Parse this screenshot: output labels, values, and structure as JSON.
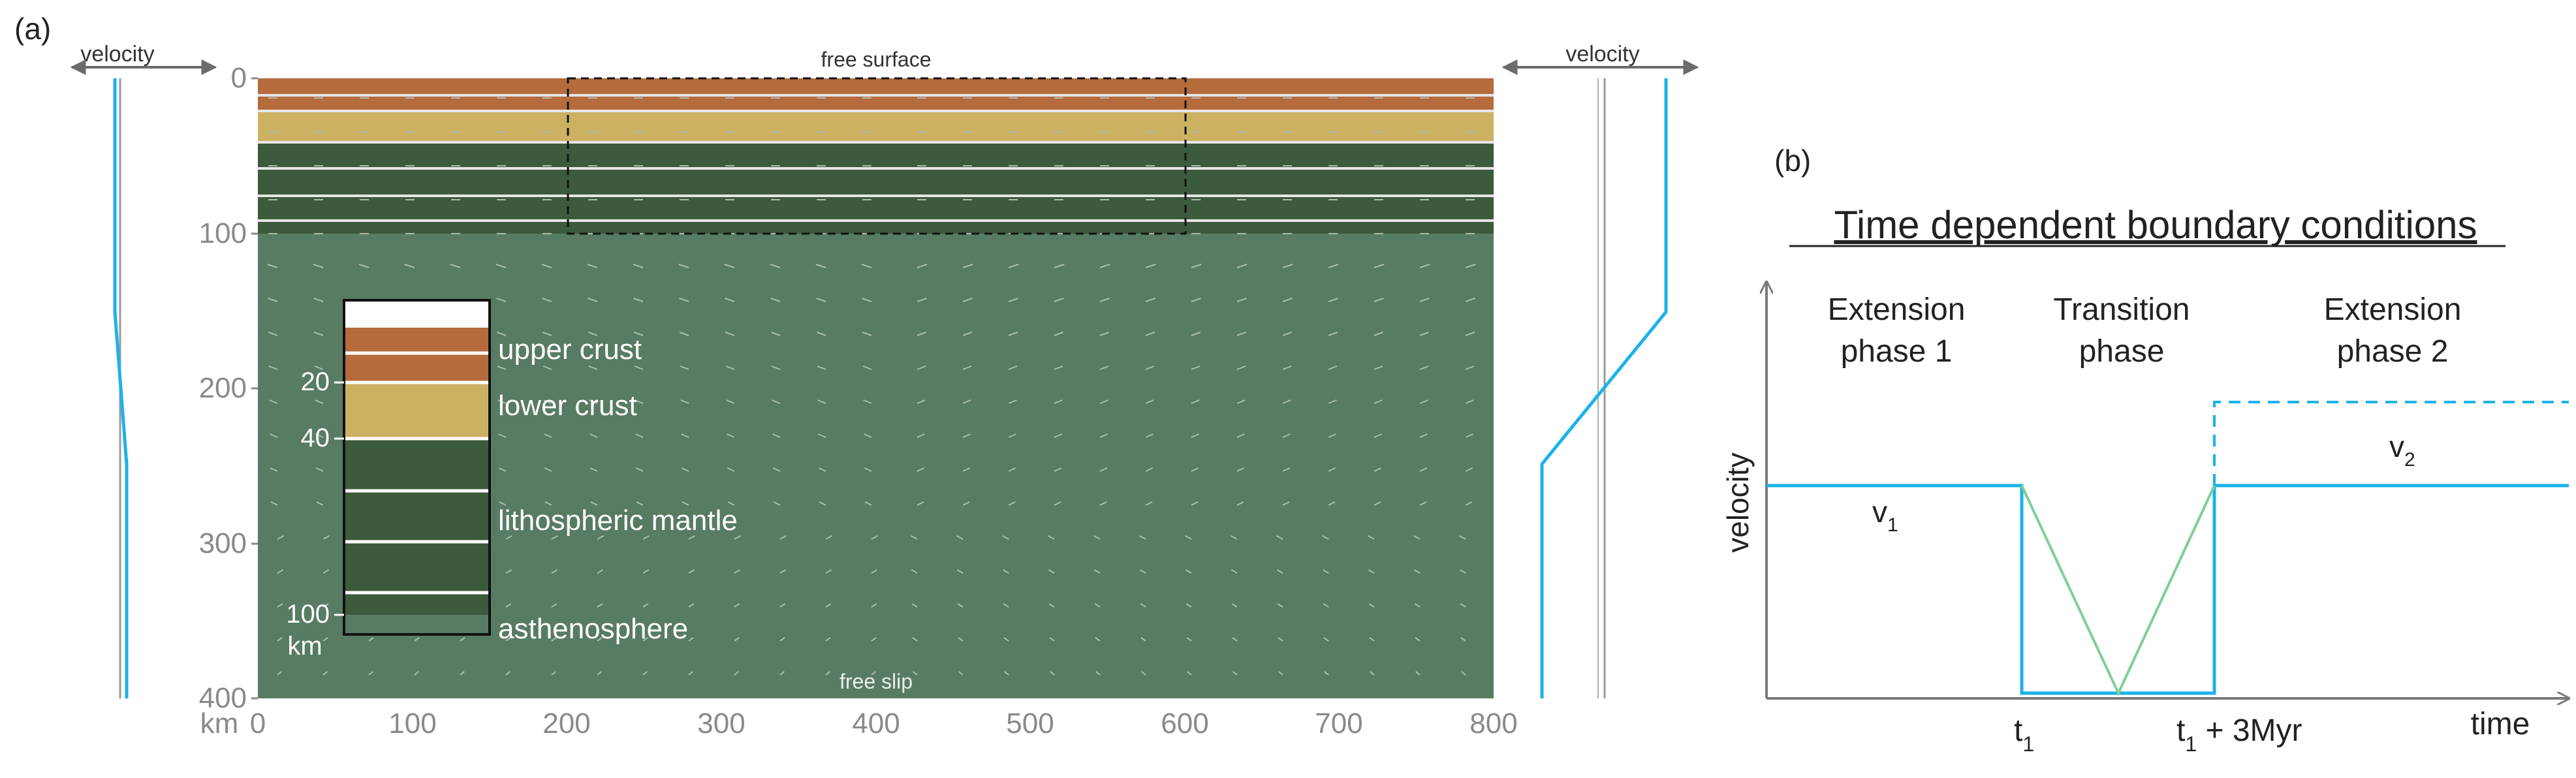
{
  "panel_a": {
    "label": "(a)",
    "left_velocity_label": "velocity",
    "right_velocity_label": "velocity",
    "free_surface_label": "free surface",
    "free_slip_label": "free slip",
    "depth_ticks": [
      "0",
      "100",
      "200",
      "300",
      "400"
    ],
    "x_ticks": [
      "0",
      "100",
      "200",
      "300",
      "400",
      "500",
      "600",
      "700",
      "800"
    ],
    "x_unit": "km",
    "legend": {
      "depth_labels": [
        "20",
        "40",
        "100"
      ],
      "unit": "km",
      "layers": [
        {
          "label": "upper crust",
          "color": "#b56b3c"
        },
        {
          "label": "lower crust",
          "color": "#cdb162"
        },
        {
          "label": "lithospheric mantle",
          "color": "#3c5a3c"
        },
        {
          "label": "asthenosphere",
          "color": "#587b63"
        }
      ]
    },
    "colors": {
      "upper_crust": "#b56b3c",
      "lower_crust": "#cdb162",
      "lithospheric_mantle": "#3c5a3c",
      "asthenosphere": "#587b63",
      "velocity_profile": "#1ab3ea"
    }
  },
  "panel_b": {
    "label": "(b)",
    "title": "Time dependent boundary conditions",
    "phase_1": [
      "Extension",
      "phase 1"
    ],
    "transition": [
      "Transition",
      "phase"
    ],
    "phase_2": [
      "Extension",
      "phase 2"
    ],
    "y_label": "velocity",
    "x_label": "time",
    "v1": {
      "base": "v",
      "sub": "1"
    },
    "v2": {
      "base": "v",
      "sub": "2"
    },
    "t1": {
      "base": "t",
      "sub": "1"
    },
    "t1_plus": {
      "base": "t",
      "sub": "1",
      "suffix": " + 3Myr"
    },
    "colors": {
      "line": "#1ab3ea",
      "transition": "#7fcf96",
      "axis": "#7a7a7a"
    }
  }
}
